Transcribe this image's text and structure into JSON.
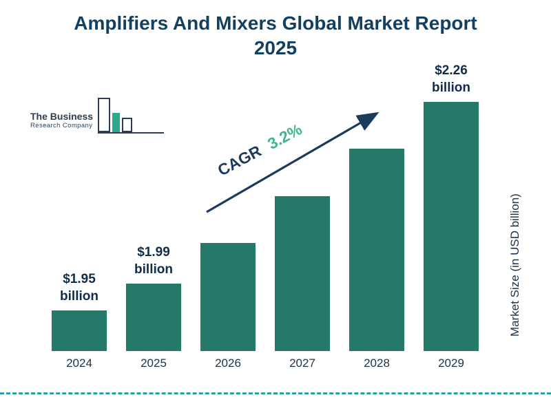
{
  "title": {
    "line1": "Amplifiers And Mixers Global Market Report",
    "line2": "2025"
  },
  "logo": {
    "line1": "The Business",
    "line2": "Research Company"
  },
  "colors": {
    "bar": "#24796a",
    "title": "#14405f",
    "green": "#3cb78e",
    "arrow": "#1b3a5c",
    "dash": "#2aa0a5",
    "axis": "#1d3147"
  },
  "chart_data": {
    "type": "bar",
    "title": "Amplifiers And Mixers Global Market Report 2025",
    "categories": [
      "2024",
      "2025",
      "2026",
      "2027",
      "2028",
      "2029"
    ],
    "values": [
      1.95,
      1.99,
      2.05,
      2.12,
      2.19,
      2.26
    ],
    "unit": "USD billion",
    "value_labels": [
      {
        "line1": "$1.95",
        "line2": "billion"
      },
      {
        "line1": "$1.99",
        "line2": "billion"
      },
      null,
      null,
      null,
      {
        "line1": "$2.26",
        "line2": "billion"
      }
    ],
    "annotation": {
      "label": "CAGR",
      "value": "3.2%"
    },
    "ylabel": "Market Size (in USD billion)",
    "xlabel": "",
    "ylim": [
      1.89,
      2.27
    ],
    "grid": false,
    "legend": false
  }
}
